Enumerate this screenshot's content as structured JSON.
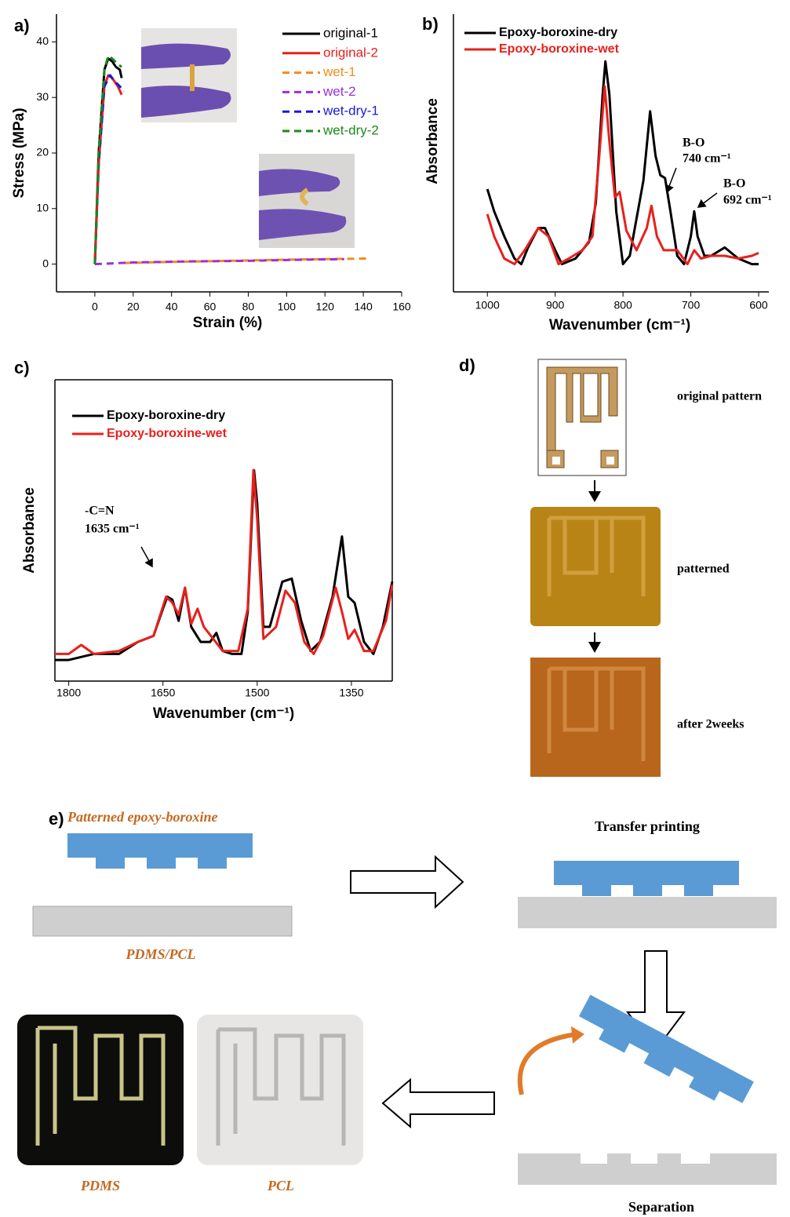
{
  "chart_data": [
    {
      "type": "line",
      "panel": "a)",
      "xlabel": "Strain (%)",
      "ylabel": "Stress (MPa)",
      "xlim": [
        -20,
        160
      ],
      "ylim": [
        -5,
        45
      ],
      "xticks": [
        0,
        20,
        40,
        60,
        80,
        100,
        120,
        140,
        160
      ],
      "yticks": [
        0,
        10,
        20,
        30,
        40
      ],
      "series": [
        {
          "name": "original-1",
          "color": "#000000",
          "style": "solid",
          "x": [
            0,
            2,
            5,
            7,
            9,
            11,
            13,
            14
          ],
          "values": [
            0,
            20,
            35,
            37,
            36.5,
            35.5,
            35,
            33.5
          ]
        },
        {
          "name": "original-2",
          "color": "#e8201c",
          "style": "solid",
          "x": [
            0,
            2,
            5,
            7,
            9,
            12,
            14
          ],
          "values": [
            0,
            18,
            32,
            34,
            33.5,
            32,
            30.5
          ]
        },
        {
          "name": "wet-1",
          "color": "#f28c1c",
          "style": "dashed",
          "x": [
            15,
            40,
            70,
            100,
            142
          ],
          "values": [
            0.2,
            0.4,
            0.6,
            0.8,
            1.0
          ]
        },
        {
          "name": "wet-2",
          "color": "#9b30d9",
          "style": "dashed",
          "x": [
            0,
            20,
            50,
            80,
            110,
            130
          ],
          "values": [
            0,
            0.3,
            0.5,
            0.6,
            0.8,
            0.9
          ]
        },
        {
          "name": "wet-dry-1",
          "color": "#1a1ad6",
          "style": "dashed",
          "x": [
            0,
            2,
            5,
            8,
            10,
            13,
            15
          ],
          "values": [
            0,
            18,
            32,
            34,
            33,
            32,
            31
          ]
        },
        {
          "name": "wet-dry-2",
          "color": "#1a8a1a",
          "style": "dashed",
          "x": [
            0,
            2,
            5,
            7,
            9,
            12,
            14
          ],
          "values": [
            0,
            20,
            35,
            37.5,
            37,
            36,
            35.5
          ]
        }
      ]
    },
    {
      "type": "line",
      "panel": "b)",
      "xlabel": "Wavenumber (cm⁻¹)",
      "ylabel": "Absorbance",
      "xlim": [
        1050,
        585
      ],
      "ylim": [
        0,
        1
      ],
      "xticks": [
        1000,
        900,
        800,
        700,
        600
      ],
      "annotations": [
        "B-O",
        "740 cm⁻¹",
        "B-O",
        "692 cm⁻¹"
      ],
      "series": [
        {
          "name": "Epoxy-boroxine-dry",
          "color": "#000000",
          "x": [
            1000,
            990,
            975,
            960,
            950,
            940,
            925,
            915,
            900,
            890,
            870,
            850,
            840,
            830,
            826,
            820,
            810,
            800,
            790,
            770,
            760,
            752,
            745,
            738,
            730,
            720,
            710,
            700,
            695,
            690,
            680,
            670,
            650,
            630,
            610,
            600
          ],
          "values": [
            0.37,
            0.29,
            0.2,
            0.12,
            0.1,
            0.16,
            0.23,
            0.23,
            0.15,
            0.1,
            0.12,
            0.18,
            0.32,
            0.71,
            0.83,
            0.71,
            0.29,
            0.1,
            0.13,
            0.4,
            0.65,
            0.49,
            0.42,
            0.41,
            0.29,
            0.13,
            0.1,
            0.2,
            0.29,
            0.2,
            0.13,
            0.13,
            0.16,
            0.12,
            0.1,
            0.1
          ]
        },
        {
          "name": "Epoxy-boroxine-wet",
          "color": "#e8201c",
          "x": [
            1000,
            990,
            975,
            960,
            945,
            925,
            910,
            895,
            880,
            860,
            845,
            835,
            827,
            820,
            812,
            805,
            795,
            780,
            765,
            758,
            750,
            740,
            720,
            705,
            695,
            685,
            670,
            650,
            630,
            610,
            600
          ],
          "values": [
            0.28,
            0.2,
            0.12,
            0.1,
            0.15,
            0.23,
            0.2,
            0.1,
            0.12,
            0.15,
            0.2,
            0.49,
            0.74,
            0.54,
            0.34,
            0.36,
            0.22,
            0.15,
            0.23,
            0.31,
            0.2,
            0.15,
            0.15,
            0.1,
            0.15,
            0.12,
            0.13,
            0.13,
            0.12,
            0.13,
            0.14
          ]
        }
      ]
    },
    {
      "type": "line",
      "panel": "c)",
      "xlabel": "Wavenumber (cm⁻¹)",
      "ylabel": "Absorbance",
      "xlim": [
        1822,
        1285
      ],
      "ylim": [
        0,
        1
      ],
      "xticks": [
        1800,
        1650,
        1500,
        1350
      ],
      "annotations": [
        "-C=N",
        "1635 cm⁻¹"
      ],
      "series": [
        {
          "name": "Epoxy-boroxine-dry",
          "color": "#000000",
          "x": [
            1822,
            1800,
            1760,
            1720,
            1690,
            1665,
            1650,
            1643,
            1635,
            1625,
            1615,
            1605,
            1590,
            1575,
            1565,
            1555,
            1540,
            1525,
            1515,
            1505,
            1500,
            1490,
            1480,
            1460,
            1445,
            1430,
            1415,
            1400,
            1380,
            1365,
            1355,
            1345,
            1330,
            1315,
            1300,
            1285
          ],
          "values": [
            0.07,
            0.07,
            0.09,
            0.09,
            0.13,
            0.15,
            0.24,
            0.28,
            0.27,
            0.2,
            0.31,
            0.18,
            0.13,
            0.13,
            0.16,
            0.1,
            0.09,
            0.09,
            0.23,
            0.7,
            0.59,
            0.18,
            0.18,
            0.33,
            0.34,
            0.2,
            0.1,
            0.13,
            0.28,
            0.48,
            0.28,
            0.26,
            0.13,
            0.09,
            0.18,
            0.33
          ]
        },
        {
          "name": "Epoxy-boroxine-wet",
          "color": "#e8201c",
          "x": [
            1822,
            1800,
            1780,
            1760,
            1720,
            1690,
            1665,
            1645,
            1635,
            1625,
            1615,
            1605,
            1595,
            1585,
            1570,
            1555,
            1530,
            1515,
            1506,
            1500,
            1490,
            1470,
            1455,
            1440,
            1425,
            1410,
            1395,
            1375,
            1365,
            1355,
            1345,
            1330,
            1315,
            1295,
            1285
          ],
          "values": [
            0.09,
            0.09,
            0.12,
            0.09,
            0.1,
            0.13,
            0.15,
            0.28,
            0.26,
            0.22,
            0.31,
            0.19,
            0.24,
            0.18,
            0.14,
            0.1,
            0.1,
            0.24,
            0.7,
            0.54,
            0.14,
            0.18,
            0.3,
            0.26,
            0.13,
            0.09,
            0.15,
            0.31,
            0.23,
            0.14,
            0.17,
            0.1,
            0.1,
            0.2,
            0.32
          ]
        }
      ]
    }
  ],
  "panels": {
    "d": {
      "label": "d)",
      "steps": [
        "original pattern",
        "patterned",
        "after 2weeks"
      ]
    },
    "e": {
      "label": "e)",
      "stamp": "Patterned epoxy-boroxine",
      "substrate": "PDMS/PCL",
      "step1": "Transfer printing",
      "step2": "Separation",
      "photos": [
        "PDMS",
        "PCL"
      ]
    }
  }
}
